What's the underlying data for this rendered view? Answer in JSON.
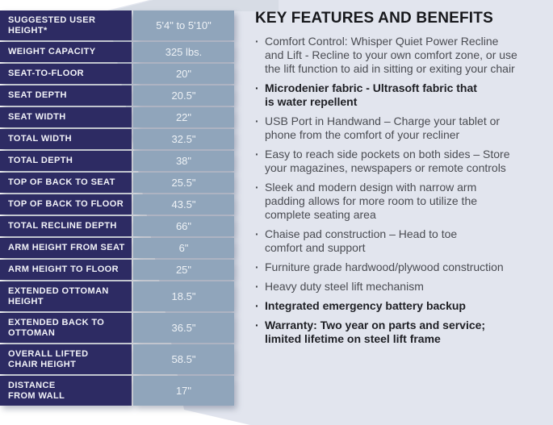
{
  "page": {
    "background_color": "#e2e5ee",
    "navy_color": "#2d2b63",
    "cell_blue_color": "#90a5bb"
  },
  "spec_table": {
    "rows": [
      {
        "label": "SUGGESTED USER\nHEIGHT*",
        "value": "5'4\" to 5'10\""
      },
      {
        "label": "WEIGHT CAPACITY",
        "value": "325 lbs."
      },
      {
        "label": "SEAT-TO-FLOOR",
        "value": "20\""
      },
      {
        "label": "SEAT DEPTH",
        "value": "20.5\""
      },
      {
        "label": "SEAT WIDTH",
        "value": "22\""
      },
      {
        "label": "TOTAL WIDTH",
        "value": "32.5\""
      },
      {
        "label": "TOTAL DEPTH",
        "value": "38\""
      },
      {
        "label": "TOP OF BACK TO SEAT",
        "value": "25.5\""
      },
      {
        "label": "TOP OF BACK TO FLOOR",
        "value": "43.5\""
      },
      {
        "label": "TOTAL RECLINE DEPTH",
        "value": "66\""
      },
      {
        "label": "ARM HEIGHT FROM SEAT",
        "value": "6\""
      },
      {
        "label": "ARM HEIGHT TO FLOOR",
        "value": "25\""
      },
      {
        "label": "EXTENDED OTTOMAN\nHEIGHT",
        "value": "18.5\""
      },
      {
        "label": "EXTENDED BACK TO\nOTTOMAN",
        "value": "36.5\""
      },
      {
        "label": "OVERALL LIFTED\nCHAIR HEIGHT",
        "value": "58.5\""
      },
      {
        "label": "DISTANCE\nFROM WALL",
        "value": "17\""
      }
    ]
  },
  "features": {
    "title": "KEY FEATURES AND BENEFITS",
    "bullet_char": "·",
    "items": [
      {
        "text": "Comfort Control: Whisper Quiet Power Recline\nand Lift - Recline to your own comfort zone, or use\nthe lift function to aid in sitting or exiting your chair",
        "bold": false
      },
      {
        "text": "Microdenier fabric - Ultrasoft fabric that\nis water repellent",
        "bold": true
      },
      {
        "text": "USB Port in Handwand – Charge your tablet or\nphone from the comfort of your recliner",
        "bold": false
      },
      {
        "text": "Easy to reach side pockets on both sides – Store\nyour magazines, newspapers or remote controls",
        "bold": false
      },
      {
        "text": "Sleek and modern design with narrow arm\npadding allows for more room to utilize the\ncomplete seating area",
        "bold": false
      },
      {
        "text": "Chaise pad construction – Head to toe\ncomfort and support",
        "bold": false
      },
      {
        "text": "Furniture grade hardwood/plywood construction",
        "bold": false
      },
      {
        "text": "Heavy duty steel lift mechanism",
        "bold": false
      },
      {
        "text": "Integrated emergency battery backup",
        "bold": true
      },
      {
        "text": "Warranty: Two year on parts and service;\nlimited lifetime on steel lift frame",
        "bold": true
      }
    ]
  }
}
